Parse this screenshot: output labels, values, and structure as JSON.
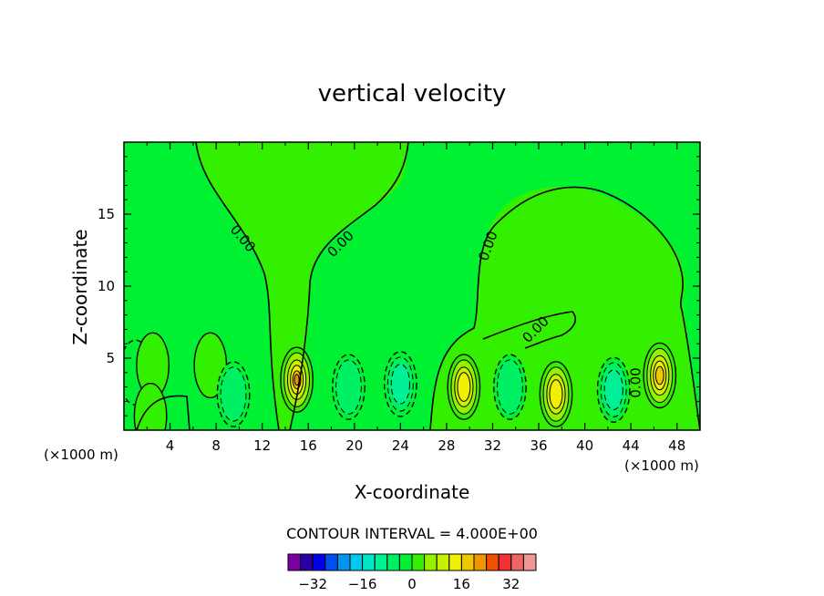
{
  "chart_data": {
    "type": "contour",
    "title": "vertical velocity",
    "xlabel": "X-coordinate",
    "ylabel": "Z-coordinate",
    "x_unit": "(×1000 m)",
    "y_unit": "(×1000 m)",
    "xlim": [
      0,
      50
    ],
    "ylim": [
      0,
      20
    ],
    "x_ticks": [
      4,
      8,
      12,
      16,
      20,
      24,
      28,
      32,
      36,
      40,
      44,
      48
    ],
    "y_ticks": [
      5,
      10,
      15
    ],
    "contour_interval_text": "CONTOUR INTERVAL = 4.000E+00",
    "contour_interval": 4.0,
    "zero_contour_labels": [
      "0.00",
      "0.00",
      "0.00",
      "0.00",
      "0.00"
    ],
    "colorbar": {
      "levels": [
        -36,
        -32,
        -28,
        -24,
        -20,
        -16,
        -12,
        -8,
        -4,
        0,
        4,
        8,
        12,
        16,
        20,
        24,
        28,
        32,
        36
      ],
      "tick_labels": [
        "−32",
        "−16",
        "0",
        "16",
        "32"
      ],
      "tick_values": [
        -32,
        -16,
        0,
        16,
        32
      ],
      "colors": [
        "#7a00a6",
        "#2a00a6",
        "#0000e6",
        "#0050f0",
        "#0096f0",
        "#00c8f0",
        "#00e6c8",
        "#00f096",
        "#00f064",
        "#00f032",
        "#32f000",
        "#96f000",
        "#c8f000",
        "#f0f000",
        "#f0c800",
        "#f09600",
        "#f05000",
        "#f03232",
        "#f06464",
        "#f09696"
      ]
    },
    "cells": [
      {
        "x": 1,
        "z": 4,
        "w": -6,
        "sign": "down"
      },
      {
        "x": 2.5,
        "z": 4.5,
        "w": 4,
        "sign": "up"
      },
      {
        "x": 2.3,
        "z": 1,
        "w": 6,
        "sign": "up"
      },
      {
        "x": 7.5,
        "z": 4.5,
        "w": 4,
        "sign": "up"
      },
      {
        "x": 9.5,
        "z": 2.5,
        "w": -8,
        "sign": "down"
      },
      {
        "x": 15,
        "z": 3.5,
        "w": 24,
        "sign": "up"
      },
      {
        "x": 19.5,
        "z": 3,
        "w": -10,
        "sign": "down"
      },
      {
        "x": 24,
        "z": 3.2,
        "w": -12,
        "sign": "down"
      },
      {
        "x": 29.5,
        "z": 3,
        "w": 18,
        "sign": "up"
      },
      {
        "x": 33.5,
        "z": 3,
        "w": -10,
        "sign": "down"
      },
      {
        "x": 37.5,
        "z": 2.5,
        "w": 18,
        "sign": "up"
      },
      {
        "x": 42.5,
        "z": 2.8,
        "w": -14,
        "sign": "down"
      },
      {
        "x": 46.5,
        "z": 3.8,
        "w": 22,
        "sign": "up"
      }
    ]
  }
}
